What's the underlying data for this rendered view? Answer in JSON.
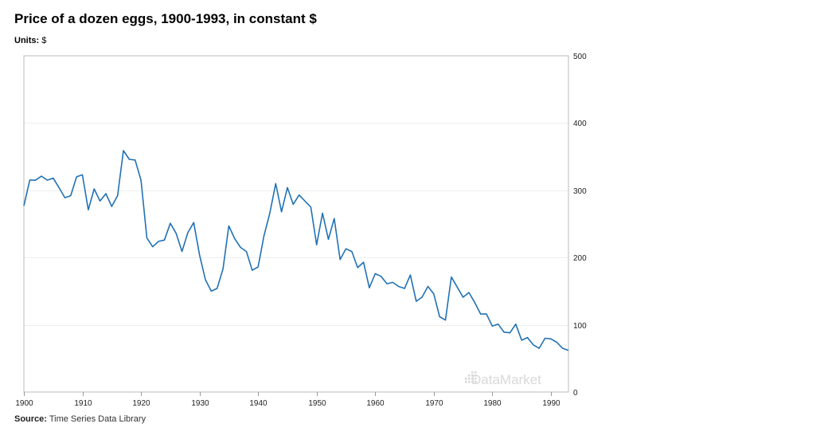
{
  "header": {
    "title": "Price of a dozen eggs, 1900-1993, in constant $",
    "units_label": "Units:",
    "units_value": "$"
  },
  "footer": {
    "source_label": "Source:",
    "source_value": "Time Series Data Library"
  },
  "watermark": "DataMarket",
  "colors": {
    "line": "#2171b5",
    "grid": "#eeeeee",
    "frame": "#bbbbbb"
  },
  "chart_data": {
    "type": "line",
    "title": "Price of a dozen eggs, 1900-1993, in constant $",
    "xlabel": "",
    "ylabel": "",
    "xlim": [
      1900,
      1993
    ],
    "ylim": [
      0,
      500
    ],
    "x_ticks": [
      1900,
      1910,
      1920,
      1930,
      1940,
      1950,
      1960,
      1970,
      1980,
      1990
    ],
    "y_ticks": [
      0,
      100,
      200,
      300,
      400,
      500
    ],
    "y_axis_side": "right",
    "grid": true,
    "legend": "none",
    "x": [
      1900,
      1901,
      1902,
      1903,
      1904,
      1905,
      1906,
      1907,
      1908,
      1909,
      1910,
      1911,
      1912,
      1913,
      1914,
      1915,
      1916,
      1917,
      1918,
      1919,
      1920,
      1921,
      1922,
      1923,
      1924,
      1925,
      1926,
      1927,
      1928,
      1929,
      1930,
      1931,
      1932,
      1933,
      1934,
      1935,
      1936,
      1937,
      1938,
      1939,
      1940,
      1941,
      1942,
      1943,
      1944,
      1945,
      1946,
      1947,
      1948,
      1949,
      1950,
      1951,
      1952,
      1953,
      1954,
      1955,
      1956,
      1957,
      1958,
      1959,
      1960,
      1961,
      1962,
      1963,
      1964,
      1965,
      1966,
      1967,
      1968,
      1969,
      1970,
      1971,
      1972,
      1973,
      1974,
      1975,
      1976,
      1977,
      1978,
      1979,
      1980,
      1981,
      1982,
      1983,
      1984,
      1985,
      1986,
      1987,
      1988,
      1989,
      1990,
      1991,
      1992,
      1993
    ],
    "series": [
      {
        "values": [
          277,
          315,
          315,
          321,
          315,
          318,
          304,
          289,
          292,
          320,
          323,
          271,
          302,
          284,
          295,
          276,
          292,
          359,
          346,
          345,
          315,
          229,
          216,
          224,
          226,
          251,
          236,
          209,
          237,
          252,
          204,
          167,
          150,
          154,
          183,
          247,
          228,
          215,
          209,
          181,
          186,
          232,
          266,
          310,
          268,
          304,
          279,
          293,
          284,
          275,
          219,
          266,
          227,
          258,
          197,
          213,
          209,
          185,
          193,
          155,
          176,
          172,
          161,
          163,
          157,
          154,
          174,
          135,
          141,
          157,
          146,
          112,
          107,
          171,
          156,
          141,
          148,
          133,
          116,
          116,
          98,
          101,
          89,
          88,
          101,
          77,
          81,
          70,
          65,
          80,
          79,
          74,
          65,
          62
        ]
      }
    ]
  }
}
